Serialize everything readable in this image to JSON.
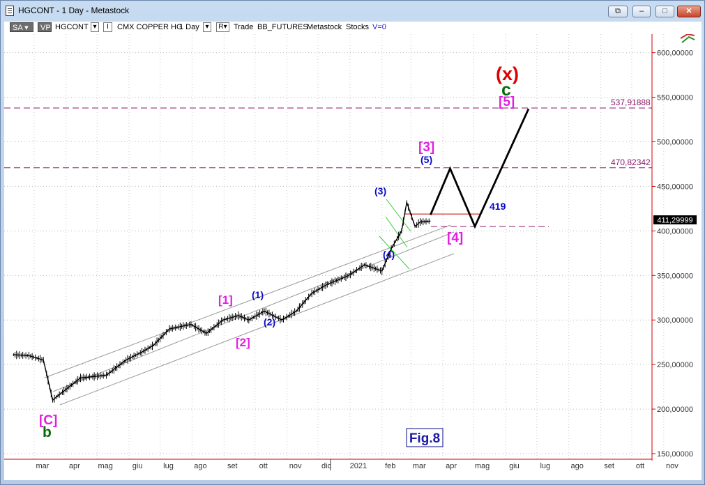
{
  "window": {
    "title": "HGCONT - 1 Day - Metastock",
    "buttons": [
      "restore-down",
      "minimize",
      "maximize",
      "close"
    ]
  },
  "toolbar": {
    "sa_label": "SA",
    "vp_label": "VP",
    "symbol": "HGCONT",
    "i_label": "I",
    "instrument": "CMX COPPER HG",
    "period": "1 Day",
    "r_label": "R",
    "mode": "Trade",
    "source": "BB_FUTURES",
    "vendor": "Metastock",
    "stocks": "Stocks",
    "v_label": "V=0"
  },
  "chart_data": {
    "type": "line",
    "y_axis_labels": [
      "600,00000",
      "550,00000",
      "500,00000",
      "450,00000",
      "400,00000",
      "350,00000",
      "300,00000",
      "250,00000",
      "200,00000",
      "150,00000"
    ],
    "ylim": [
      150,
      620
    ],
    "x_axis_labels": [
      "mar",
      "apr",
      "mag",
      "giu",
      "lug",
      "ago",
      "set",
      "ott",
      "nov",
      "dic",
      "2021",
      "feb",
      "mar",
      "apr",
      "mag",
      "giu",
      "lug",
      "ago",
      "set",
      "ott",
      "nov"
    ],
    "price_series": {
      "x": [
        "2020-02-10",
        "2020-02-25",
        "2020-03-10",
        "2020-03-19",
        "2020-03-24",
        "2020-04-15",
        "2020-05-10",
        "2020-05-29",
        "2020-06-15",
        "2020-06-25",
        "2020-07-10",
        "2020-07-31",
        "2020-08-15",
        "2020-08-31",
        "2020-09-15",
        "2020-09-25",
        "2020-10-10",
        "2020-10-27",
        "2020-11-10",
        "2020-11-25",
        "2020-12-10",
        "2020-12-31",
        "2021-01-15",
        "2021-02-01",
        "2021-02-10",
        "2021-02-20",
        "2021-02-25",
        "2021-03-05",
        "2021-03-10",
        "2021-03-20"
      ],
      "values": [
        261,
        260,
        255,
        210,
        215,
        235,
        238,
        255,
        265,
        272,
        290,
        295,
        285,
        300,
        305,
        300,
        310,
        300,
        310,
        330,
        340,
        350,
        362,
        355,
        380,
        400,
        432,
        405,
        410,
        411
      ]
    },
    "last_price_label": "411,29999",
    "horizontal_levels": [
      {
        "value": 537.91888,
        "label": "537,91888",
        "style": "dashed",
        "color": "#8b1a6b"
      },
      {
        "value": 470.82342,
        "label": "470,82342",
        "style": "dashed",
        "color": "#8b1a6b"
      },
      {
        "value": 405,
        "label": "",
        "style": "dashed",
        "color": "#8b1a6b"
      },
      {
        "value": 419,
        "label": "419",
        "style": "solid",
        "color": "#cc0000"
      }
    ],
    "projection_path": {
      "x": [
        "2021-03-20",
        "2021-04-08",
        "2021-05-02",
        "2021-06-23"
      ],
      "values": [
        418,
        470,
        405,
        537
      ]
    },
    "wave_labels": [
      {
        "text": "[C]",
        "color": "#e020e0"
      },
      {
        "text": "b",
        "color": "#0b6b0b"
      },
      {
        "text": "[1]",
        "color": "#e020e0"
      },
      {
        "text": "[2]",
        "color": "#e020e0"
      },
      {
        "text": "(1)",
        "color": "#0a0ac8"
      },
      {
        "text": "(2)",
        "color": "#0a0ac8"
      },
      {
        "text": "(3)",
        "color": "#0a0ac8"
      },
      {
        "text": "(4)",
        "color": "#0a0ac8"
      },
      {
        "text": "(5)",
        "color": "#0a0ac8"
      },
      {
        "text": "[3]",
        "color": "#e020e0"
      },
      {
        "text": "[4]",
        "color": "#e020e0"
      },
      {
        "text": "[5]",
        "color": "#e020e0"
      },
      {
        "text": "c",
        "color": "#0b6b0b"
      },
      {
        "text": "(x)",
        "color": "#dd0000"
      }
    ],
    "figure_label": "Fig.8"
  }
}
